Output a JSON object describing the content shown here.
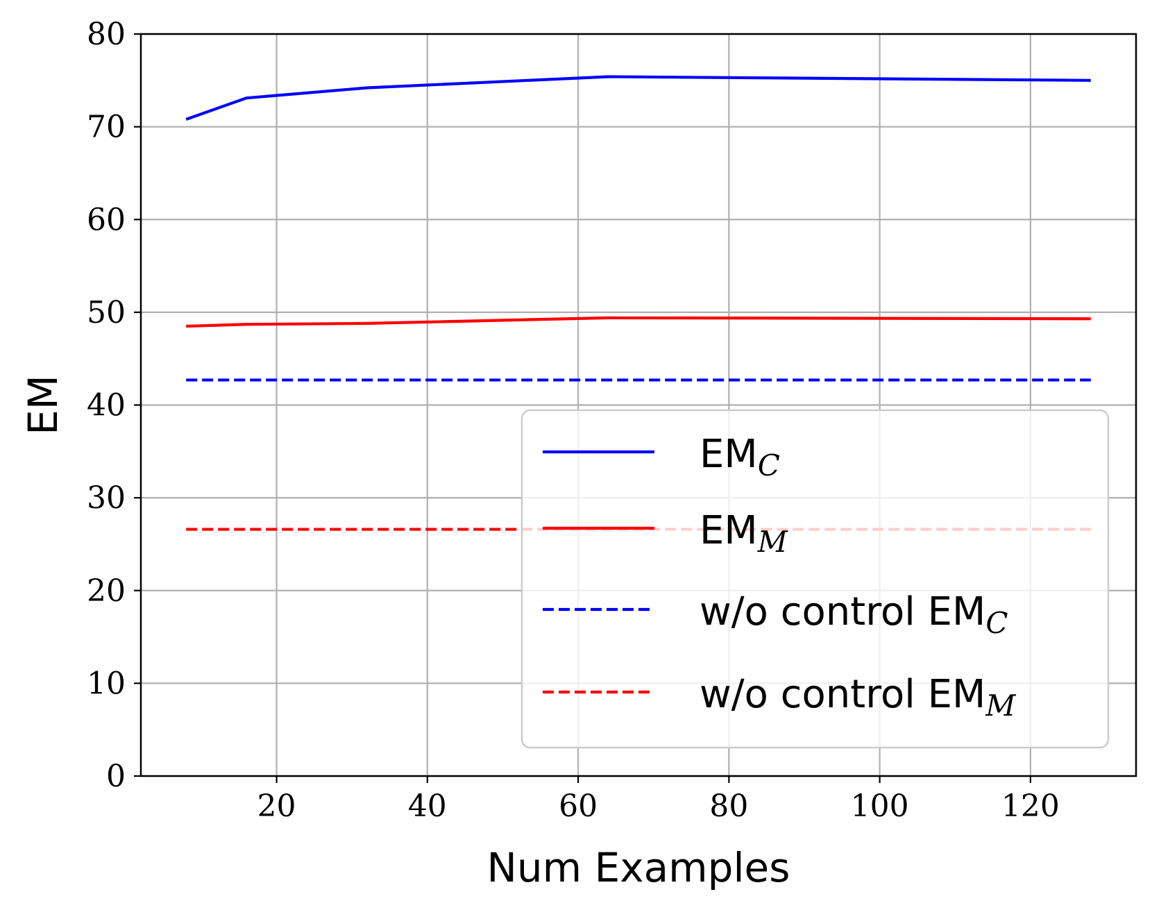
{
  "chart_data": {
    "type": "line",
    "xlabel": "Num Examples",
    "ylabel": "EM",
    "xlim": [
      2,
      134
    ],
    "ylim": [
      0,
      80
    ],
    "xticks": [
      20,
      40,
      60,
      80,
      100,
      120
    ],
    "yticks": [
      0,
      10,
      20,
      30,
      40,
      50,
      60,
      70,
      80
    ],
    "grid": true,
    "legend_position": "lower-right",
    "series": [
      {
        "name": "EM",
        "name_subscript": "C",
        "color": "#0000ff",
        "style": "solid",
        "x": [
          8,
          16,
          32,
          64,
          128
        ],
        "y": [
          70.8,
          73.1,
          74.2,
          75.4,
          75.0
        ]
      },
      {
        "name": "EM",
        "name_subscript": "M",
        "color": "#ff0000",
        "style": "solid",
        "x": [
          8,
          16,
          32,
          64,
          128
        ],
        "y": [
          48.5,
          48.7,
          48.8,
          49.4,
          49.3
        ]
      },
      {
        "name": "w/o control EM",
        "name_subscript": "C",
        "color": "#0000ff",
        "style": "dashed",
        "x": [
          8,
          128
        ],
        "y": [
          42.7,
          42.7
        ]
      },
      {
        "name": "w/o control EM",
        "name_subscript": "M",
        "color": "#ff0000",
        "style": "dashed",
        "x": [
          8,
          128
        ],
        "y": [
          26.6,
          26.6
        ]
      }
    ]
  }
}
